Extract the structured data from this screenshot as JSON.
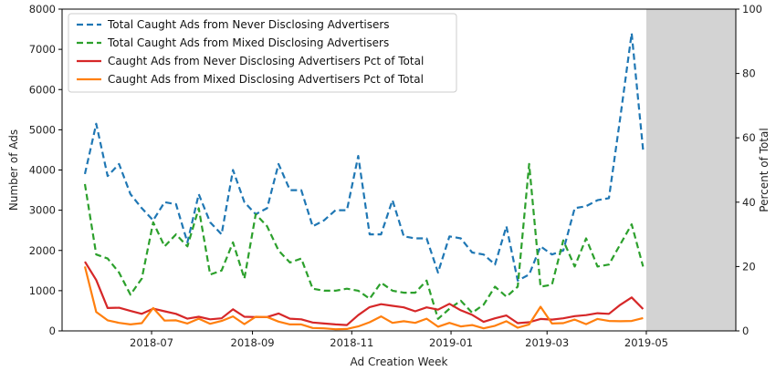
{
  "chart_data": {
    "type": "line",
    "xlabel": "Ad Creation Week",
    "ylabel_left": "Number of Ads",
    "ylabel_right": "Percent of Total",
    "ylim_left": [
      0,
      8000
    ],
    "ylim_right": [
      0,
      100
    ],
    "yticks_left": [
      0,
      1000,
      2000,
      3000,
      4000,
      5000,
      6000,
      7000,
      8000
    ],
    "yticks_right": [
      0,
      20,
      40,
      60,
      80,
      100
    ],
    "x_range": [
      "2018-05-07",
      "2019-06-25"
    ],
    "xticks": [
      "2018-07",
      "2018-09",
      "2018-11",
      "2019-01",
      "2019-03",
      "2019-05"
    ],
    "legend_position": "upper left",
    "shaded_region": {
      "from": "2019-05-01",
      "to": "2019-06-25",
      "color": "#d3d3d3"
    },
    "x": [
      "2018-05-21",
      "2018-05-28",
      "2018-06-04",
      "2018-06-11",
      "2018-06-18",
      "2018-06-25",
      "2018-07-02",
      "2018-07-09",
      "2018-07-16",
      "2018-07-23",
      "2018-07-30",
      "2018-08-06",
      "2018-08-13",
      "2018-08-20",
      "2018-08-27",
      "2018-09-03",
      "2018-09-10",
      "2018-09-17",
      "2018-09-24",
      "2018-10-01",
      "2018-10-08",
      "2018-10-15",
      "2018-10-22",
      "2018-10-29",
      "2018-11-05",
      "2018-11-12",
      "2018-11-19",
      "2018-11-26",
      "2018-12-03",
      "2018-12-10",
      "2018-12-17",
      "2018-12-24",
      "2018-12-31",
      "2019-01-07",
      "2019-01-14",
      "2019-01-21",
      "2019-01-28",
      "2019-02-04",
      "2019-02-11",
      "2019-02-18",
      "2019-02-25",
      "2019-03-04",
      "2019-03-11",
      "2019-03-18",
      "2019-03-25",
      "2019-04-01",
      "2019-04-08",
      "2019-04-15",
      "2019-04-22",
      "2019-04-29"
    ],
    "series": [
      {
        "name": "Total Caught Ads from Never Disclosing Advertisers",
        "axis": "left",
        "color": "#1f77b4",
        "style": "dashed",
        "values": [
          3900,
          5150,
          3850,
          4150,
          3400,
          3050,
          2750,
          3200,
          3150,
          2200,
          3400,
          2700,
          2400,
          4000,
          3200,
          2900,
          3050,
          4150,
          3500,
          3500,
          2600,
          2750,
          3000,
          3000,
          4350,
          2400,
          2400,
          3250,
          2350,
          2300,
          2300,
          1450,
          2350,
          2300,
          1950,
          1900,
          1650,
          2600,
          1250,
          1400,
          2100,
          1900,
          2000,
          3050,
          3100,
          3250,
          3300,
          5300,
          7400,
          4500
        ]
      },
      {
        "name": "Total Caught Ads from Mixed Disclosing Advertisers",
        "axis": "left",
        "color": "#2ca02c",
        "style": "dashed",
        "values": [
          3650,
          1900,
          1800,
          1450,
          900,
          1300,
          2700,
          2100,
          2400,
          2100,
          3050,
          1400,
          1500,
          2200,
          1300,
          2900,
          2600,
          2000,
          1700,
          1800,
          1050,
          1000,
          1000,
          1050,
          1000,
          800,
          1200,
          1000,
          950,
          950,
          1250,
          300,
          550,
          750,
          450,
          650,
          1100,
          850,
          1100,
          4150,
          1100,
          1150,
          2250,
          1600,
          2300,
          1600,
          1650,
          2150,
          2650,
          1600
        ]
      },
      {
        "name": "Caught Ads from Never Disclosing Advertisers Pct of Total",
        "axis": "right",
        "color": "#d62728",
        "style": "solid",
        "values": [
          21.5,
          15.8,
          7.1,
          7.2,
          6.2,
          5.3,
          6.9,
          6.1,
          5.3,
          3.8,
          4.4,
          3.6,
          3.9,
          6.7,
          4.4,
          4.3,
          4.3,
          5.4,
          3.8,
          3.6,
          2.6,
          2.3,
          2.0,
          1.8,
          4.9,
          7.4,
          8.3,
          7.8,
          7.3,
          6.1,
          7.3,
          6.6,
          8.4,
          6.4,
          5.0,
          2.8,
          3.9,
          4.8,
          2.4,
          2.7,
          3.7,
          3.5,
          3.9,
          4.6,
          4.9,
          5.5,
          5.3,
          8.1,
          10.4,
          6.8
        ]
      },
      {
        "name": "Caught Ads from Mixed Disclosing Advertisers Pct of Total",
        "axis": "right",
        "color": "#ff7f0e",
        "style": "solid",
        "values": [
          20.0,
          5.9,
          3.3,
          2.5,
          2.0,
          2.4,
          7.1,
          3.2,
          3.3,
          2.3,
          3.8,
          2.2,
          3.1,
          4.5,
          2.1,
          4.4,
          4.3,
          2.9,
          2.0,
          2.0,
          0.9,
          0.8,
          0.5,
          0.6,
          1.4,
          2.7,
          4.5,
          2.5,
          3.0,
          2.5,
          3.8,
          1.3,
          2.5,
          1.4,
          1.8,
          0.8,
          1.6,
          3.0,
          1.0,
          2.0,
          7.5,
          2.3,
          2.4,
          3.5,
          2.1,
          3.7,
          3.1,
          3.0,
          3.1,
          4.0
        ]
      }
    ]
  }
}
